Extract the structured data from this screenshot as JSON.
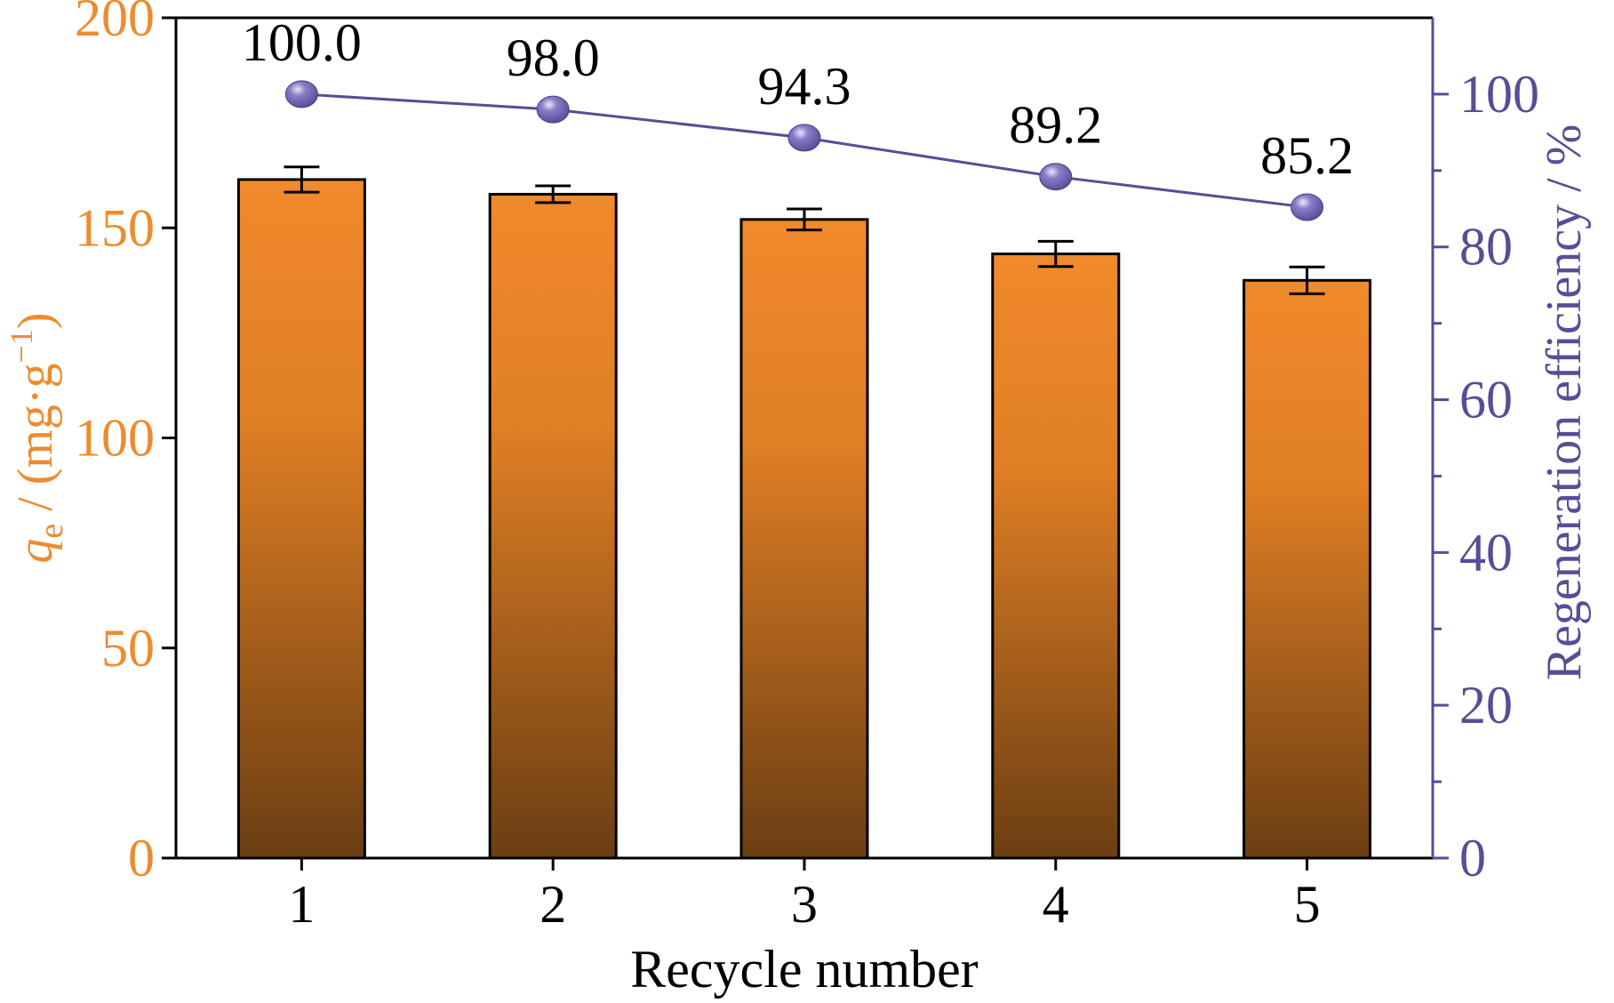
{
  "colors": {
    "left_axis": "#ED8C2E",
    "right_axis": "#5A4C96",
    "bar_top": "#F08A2C",
    "bar_bottom": "#6B3E12",
    "marker": "#5A4C96",
    "text": "#000000"
  },
  "chart_data": {
    "type": "bar",
    "categories": [
      "1",
      "2",
      "3",
      "4",
      "5"
    ],
    "xlabel": "Recycle number",
    "ylabel_left": {
      "italic": "q",
      "sub": "e",
      "rest": " / (mg·g",
      "sup": "−1",
      "close": ")"
    },
    "ylabel_right": "Regeneration efficiency / %",
    "ylim_left": [
      0,
      200
    ],
    "ylim_right": [
      0,
      110
    ],
    "yticks_left": [
      "0",
      "50",
      "100",
      "150",
      "200"
    ],
    "yticks_right": [
      "0",
      "20",
      "40",
      "60",
      "80",
      "100"
    ],
    "series": [
      {
        "kind": "bar",
        "axis": "left",
        "values": [
          161.5,
          158.0,
          152.0,
          143.8,
          137.5
        ],
        "errors": [
          3.0,
          2.0,
          2.5,
          3.0,
          3.2
        ]
      },
      {
        "kind": "line",
        "axis": "right",
        "values": [
          100.0,
          98.0,
          94.3,
          89.2,
          85.2
        ],
        "labels": [
          "100.0",
          "98.0",
          "94.3",
          "89.2",
          "85.2"
        ]
      }
    ]
  }
}
